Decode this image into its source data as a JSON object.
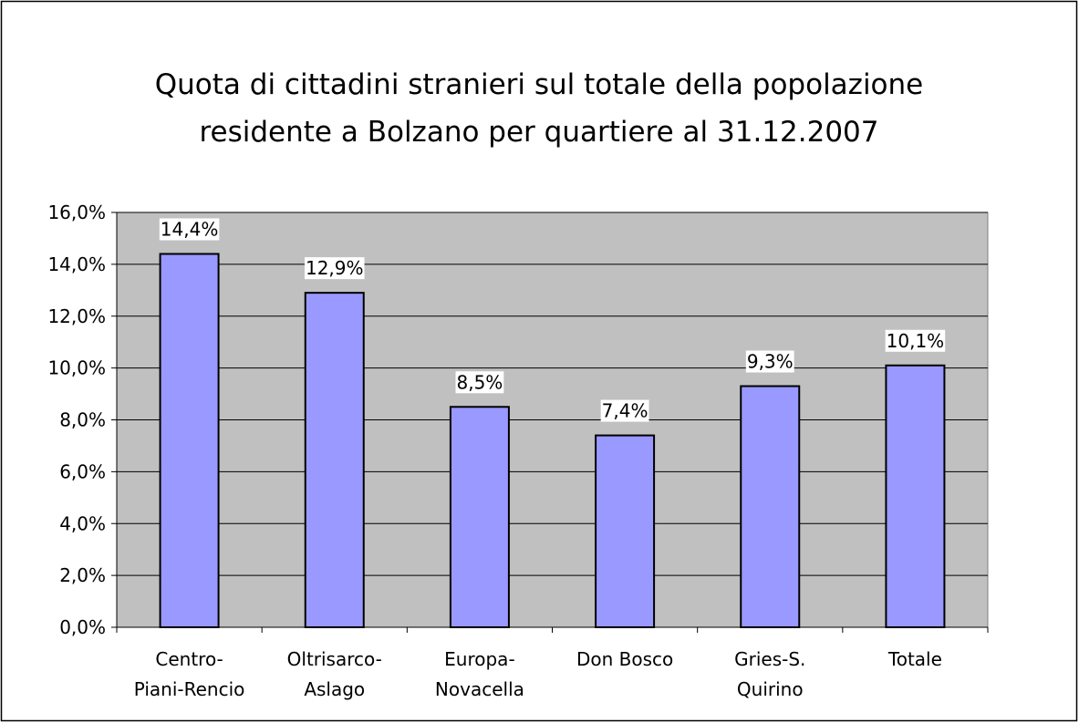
{
  "chart_data": {
    "type": "bar",
    "title": "Quota di cittadini stranieri sul totale della popolazione\nresidente a Bolzano per quartiere al 31.12.2007",
    "categories": [
      "Centro-\nPiani-Rencio",
      "Oltrisarco-\nAslago",
      "Europa-\nNovacella",
      "Don Bosco",
      "Gries-S.\nQuirino",
      "Totale"
    ],
    "values": [
      14.4,
      12.9,
      8.5,
      7.4,
      9.3,
      10.1
    ],
    "value_labels": [
      "14,4%",
      "12,9%",
      "8,5%",
      "7,4%",
      "9,3%",
      "10,1%"
    ],
    "color": "#9999ff",
    "ylim": [
      0,
      16
    ],
    "yticks": [
      {
        "value": 0,
        "label": "0,0%"
      },
      {
        "value": 2,
        "label": "2,0%"
      },
      {
        "value": 4,
        "label": "4,0%"
      },
      {
        "value": 6,
        "label": "6,0%"
      },
      {
        "value": 8,
        "label": "8,0%"
      },
      {
        "value": 10,
        "label": "10,0%"
      },
      {
        "value": 12,
        "label": "12,0%"
      },
      {
        "value": 14,
        "label": "14,0%"
      },
      {
        "value": 16,
        "label": "16,0%"
      }
    ],
    "grid": true
  }
}
